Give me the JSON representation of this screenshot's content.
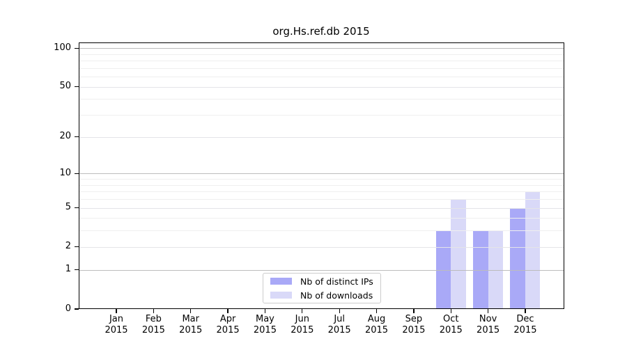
{
  "title": "org.Hs.ref.db 2015",
  "colors": {
    "distinct_ips": "#a9a9f7",
    "downloads": "#d9d9f8",
    "axis": "#000000",
    "grid_decade": "#bcbcbc",
    "grid_labeled": "#e4e4e8",
    "grid_minor": "#efefef",
    "legend_border": "#cccccc",
    "background": "#ffffff"
  },
  "legend": {
    "items": [
      {
        "label": "Nb of distinct IPs",
        "color_key": "distinct_ips"
      },
      {
        "label": "Nb of downloads",
        "color_key": "downloads"
      }
    ]
  },
  "y_axis": {
    "tick_labels": [
      "0",
      "1",
      "2",
      "5",
      "10",
      "20",
      "50",
      "100"
    ]
  },
  "x_axis": {
    "year": "2015",
    "months": [
      "Jan",
      "Feb",
      "Mar",
      "Apr",
      "May",
      "Jun",
      "Jul",
      "Aug",
      "Sep",
      "Oct",
      "Nov",
      "Dec"
    ]
  },
  "chart_data": {
    "type": "bar",
    "title": "org.Hs.ref.db 2015",
    "categories": [
      "Jan 2015",
      "Feb 2015",
      "Mar 2015",
      "Apr 2015",
      "May 2015",
      "Jun 2015",
      "Jul 2015",
      "Aug 2015",
      "Sep 2015",
      "Oct 2015",
      "Nov 2015",
      "Dec 2015"
    ],
    "series": [
      {
        "name": "Nb of distinct IPs",
        "color_key": "distinct_ips",
        "values": [
          0,
          0,
          0,
          0,
          0,
          0,
          0,
          0,
          0,
          3,
          3,
          5
        ]
      },
      {
        "name": "Nb of downloads",
        "color_key": "downloads",
        "values": [
          0,
          0,
          0,
          0,
          0,
          0,
          0,
          0,
          0,
          6,
          3,
          7
        ]
      }
    ],
    "yscale": "log1p",
    "ylim": [
      0,
      111
    ],
    "yticks_major": [
      0,
      1,
      2,
      5,
      10,
      20,
      50,
      100
    ],
    "yticks_minor": [
      3,
      4,
      6,
      7,
      8,
      9,
      30,
      40,
      60,
      70,
      80,
      90
    ],
    "grid": true,
    "legend_position": "lower center inside",
    "xlabel": "",
    "ylabel": ""
  }
}
